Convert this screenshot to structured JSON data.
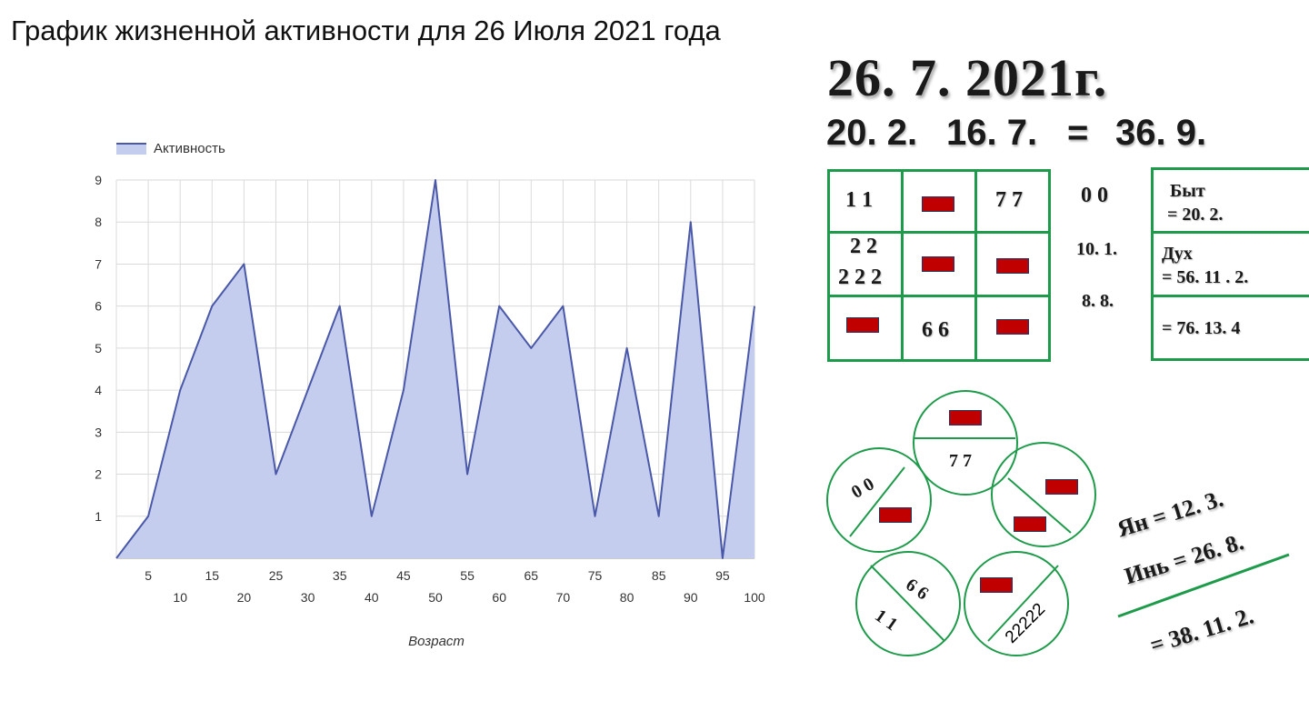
{
  "page": {
    "title": "График жизненной активности для 26 Июля 2021 года"
  },
  "chart_data": {
    "type": "area",
    "legend": {
      "label": "Активность",
      "position": "top-left"
    },
    "xlabel": "Возраст",
    "ylabel": "",
    "x": [
      0,
      5,
      10,
      15,
      20,
      25,
      30,
      35,
      40,
      45,
      50,
      55,
      60,
      65,
      70,
      75,
      80,
      85,
      90,
      95,
      100
    ],
    "x_ticks_upper": [
      "5",
      "15",
      "25",
      "35",
      "45",
      "55",
      "65",
      "75",
      "85",
      "95"
    ],
    "x_ticks_lower": [
      "10",
      "20",
      "30",
      "40",
      "50",
      "60",
      "70",
      "80",
      "90",
      "100"
    ],
    "y_ticks": [
      "1",
      "2",
      "3",
      "4",
      "5",
      "6",
      "7",
      "8",
      "9"
    ],
    "ylim": [
      0,
      9
    ],
    "xlim": [
      0,
      100
    ],
    "grid": true,
    "series": [
      {
        "name": "Активность",
        "values": [
          0,
          1,
          4,
          6,
          7,
          2,
          4,
          6,
          1,
          4,
          9,
          2,
          6,
          5,
          6,
          1,
          5,
          1,
          8,
          0,
          6
        ]
      }
    ],
    "colors": {
      "line": "#4a58a8",
      "fill": "#c5cdee",
      "grid": "#dadada",
      "axis_text": "#333333"
    }
  },
  "numerology": {
    "date": "26. 7. 2021г.",
    "formula": {
      "a": "20. 2.",
      "b": "16. 7.",
      "eq": "=",
      "result": "36. 9."
    },
    "grid": {
      "r1c1": "1 1",
      "r1c3": "7 7",
      "r2c1_line1": "2 2",
      "r2c1_line2": "2 2 2",
      "r3c2": "6 6"
    },
    "middle": {
      "m1": "0 0",
      "m2": "10. 1.",
      "m3": "8. 8."
    },
    "boxes": {
      "byt_label": "Быт",
      "byt_value": "=  20. 2.",
      "dukh_label": "Дух",
      "dukh_value": "=  56. 11 . 2.",
      "total": "=  76. 13. 4"
    },
    "circles": {
      "top": "7 7",
      "left": "0 0",
      "bottom_left_a": "6 6",
      "bottom_left_b": "1 1",
      "bottom_right": "22222"
    },
    "yin_yang": {
      "yan": "Ян =  12. 3.",
      "yin": "Инь =  26. 8.",
      "total": "=  38. 11. 2."
    },
    "colors": {
      "green": "#1e9b4a",
      "red": "#c00000"
    }
  }
}
